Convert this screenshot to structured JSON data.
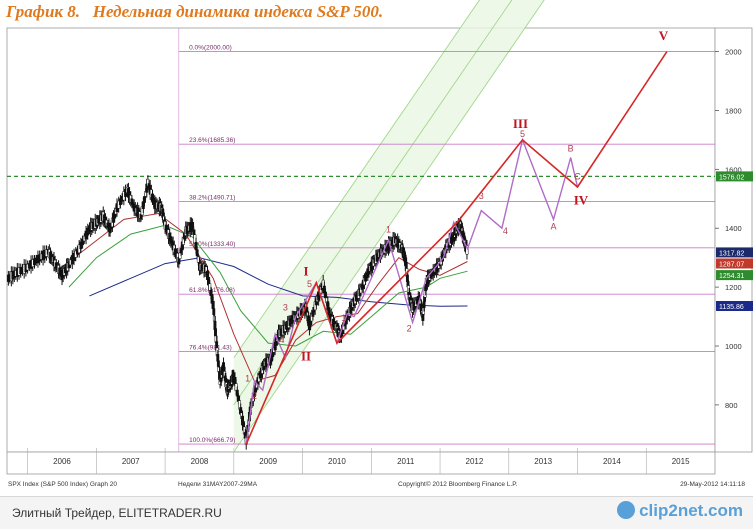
{
  "title": "График 8.   Недельная динамика индекса S&P 500.",
  "footer": {
    "caption": "Элитный Трейдер, ELITETRADER.RU",
    "logo": "clip2net.com"
  },
  "chart_data": {
    "type": "line",
    "ylim": [
      640,
      2080
    ],
    "y_ticks": [
      800,
      1000,
      1200,
      1400,
      1600,
      1800,
      2000
    ],
    "x_range": [
      2005.7,
      2016.0
    ],
    "x_ticks": [
      "2006",
      "2007",
      "2008",
      "2009",
      "2010",
      "2011",
      "2012",
      "2013",
      "2014",
      "2015"
    ],
    "grid": false,
    "bottom_text": {
      "left": "SPX Index (S&P 500 Index) Graph 20",
      "center_left": "Недели 31MAY2007-29MA",
      "center": "Copyright© 2012 Bloomberg Finance L.P.",
      "right": "29-May-2012 14:11:18"
    },
    "fib_levels": [
      {
        "label": "0.0%(2000.00)",
        "value": 2000.0
      },
      {
        "label": "23.6%(1685.36)",
        "value": 1685.36
      },
      {
        "label": "38.2%(1490.71)",
        "value": 1490.71
      },
      {
        "label": "50.0%(1333.40)",
        "value": 1333.4
      },
      {
        "label": "61.8%(1176.08)",
        "value": 1176.08
      },
      {
        "label": "76.4%(981.43)",
        "value": 981.43
      },
      {
        "label": "100.0%(666.79)",
        "value": 666.79
      }
    ],
    "last_values": [
      {
        "label": "1317.82",
        "value": 1317.82,
        "color": "#1a2a6a"
      },
      {
        "label": "1287.07",
        "value": 1287.07,
        "color": "#c0392b"
      },
      {
        "label": "1254.31",
        "value": 1254.31,
        "color": "#2e8b2e"
      },
      {
        "label": "1135.86",
        "value": 1135.86,
        "color": "#1a2a8a"
      }
    ],
    "dashed_level": {
      "label": "1576.02",
      "value": 1576.02
    },
    "price": [
      [
        2005.72,
        1230
      ],
      [
        2005.85,
        1250
      ],
      [
        2006.0,
        1268
      ],
      [
        2006.15,
        1295
      ],
      [
        2006.3,
        1320
      ],
      [
        2006.4,
        1280
      ],
      [
        2006.5,
        1240
      ],
      [
        2006.6,
        1275
      ],
      [
        2006.75,
        1330
      ],
      [
        2006.9,
        1400
      ],
      [
        2007.0,
        1418
      ],
      [
        2007.1,
        1440
      ],
      [
        2007.2,
        1395
      ],
      [
        2007.3,
        1470
      ],
      [
        2007.45,
        1530
      ],
      [
        2007.55,
        1470
      ],
      [
        2007.65,
        1440
      ],
      [
        2007.75,
        1555
      ],
      [
        2007.85,
        1480
      ],
      [
        2007.95,
        1470
      ],
      [
        2008.0,
        1410
      ],
      [
        2008.1,
        1350
      ],
      [
        2008.2,
        1290
      ],
      [
        2008.3,
        1390
      ],
      [
        2008.4,
        1410
      ],
      [
        2008.5,
        1270
      ],
      [
        2008.6,
        1260
      ],
      [
        2008.7,
        1140
      ],
      [
        2008.75,
        1000
      ],
      [
        2008.8,
        880
      ],
      [
        2008.85,
        930
      ],
      [
        2008.9,
        850
      ],
      [
        2008.95,
        870
      ],
      [
        2009.0,
        900
      ],
      [
        2009.1,
        780
      ],
      [
        2009.18,
        680
      ],
      [
        2009.25,
        800
      ],
      [
        2009.35,
        880
      ],
      [
        2009.45,
        940
      ],
      [
        2009.55,
        960
      ],
      [
        2009.65,
        1040
      ],
      [
        2009.75,
        1060
      ],
      [
        2009.85,
        1090
      ],
      [
        2009.95,
        1110
      ],
      [
        2010.05,
        1130
      ],
      [
        2010.1,
        1070
      ],
      [
        2010.2,
        1150
      ],
      [
        2010.3,
        1210
      ],
      [
        2010.4,
        1100
      ],
      [
        2010.5,
        1060
      ],
      [
        2010.55,
        1030
      ],
      [
        2010.65,
        1100
      ],
      [
        2010.75,
        1150
      ],
      [
        2010.85,
        1190
      ],
      [
        2010.95,
        1250
      ],
      [
        2011.05,
        1290
      ],
      [
        2011.15,
        1320
      ],
      [
        2011.25,
        1340
      ],
      [
        2011.35,
        1360
      ],
      [
        2011.45,
        1330
      ],
      [
        2011.5,
        1290
      ],
      [
        2011.55,
        1170
      ],
      [
        2011.6,
        1130
      ],
      [
        2011.7,
        1160
      ],
      [
        2011.75,
        1100
      ],
      [
        2011.8,
        1220
      ],
      [
        2011.9,
        1250
      ],
      [
        2012.0,
        1280
      ],
      [
        2012.1,
        1340
      ],
      [
        2012.2,
        1370
      ],
      [
        2012.25,
        1400
      ],
      [
        2012.3,
        1410
      ],
      [
        2012.35,
        1360
      ],
      [
        2012.4,
        1320
      ]
    ],
    "ma_red": [
      [
        2006.4,
        1250
      ],
      [
        2006.9,
        1340
      ],
      [
        2007.4,
        1430
      ],
      [
        2007.9,
        1450
      ],
      [
        2008.3,
        1380
      ],
      [
        2008.7,
        1230
      ],
      [
        2009.0,
        1040
      ],
      [
        2009.3,
        880
      ],
      [
        2009.6,
        900
      ],
      [
        2009.9,
        1020
      ],
      [
        2010.2,
        1080
      ],
      [
        2010.5,
        1100
      ],
      [
        2010.8,
        1110
      ],
      [
        2011.1,
        1210
      ],
      [
        2011.4,
        1300
      ],
      [
        2011.7,
        1260
      ],
      [
        2012.0,
        1240
      ],
      [
        2012.4,
        1287
      ]
    ],
    "ma_green": [
      [
        2006.6,
        1200
      ],
      [
        2007.0,
        1300
      ],
      [
        2007.5,
        1380
      ],
      [
        2008.0,
        1410
      ],
      [
        2008.4,
        1370
      ],
      [
        2008.8,
        1250
      ],
      [
        2009.1,
        1120
      ],
      [
        2009.5,
        1010
      ],
      [
        2009.9,
        1000
      ],
      [
        2010.3,
        1050
      ],
      [
        2010.7,
        1040
      ],
      [
        2011.0,
        1100
      ],
      [
        2011.4,
        1180
      ],
      [
        2011.8,
        1200
      ],
      [
        2012.0,
        1230
      ],
      [
        2012.4,
        1254
      ]
    ],
    "ma_blue": [
      [
        2006.9,
        1170
      ],
      [
        2007.5,
        1230
      ],
      [
        2008.0,
        1280
      ],
      [
        2008.5,
        1300
      ],
      [
        2009.0,
        1270
      ],
      [
        2009.5,
        1210
      ],
      [
        2010.0,
        1170
      ],
      [
        2010.5,
        1165
      ],
      [
        2011.0,
        1150
      ],
      [
        2011.5,
        1140
      ],
      [
        2012.0,
        1135
      ],
      [
        2012.4,
        1135.86
      ]
    ],
    "wave_main": [
      [
        2009.18,
        666
      ],
      [
        2010.2,
        1215
      ],
      [
        2010.5,
        1010
      ],
      [
        2012.25,
        1420
      ],
      [
        2013.2,
        1700
      ],
      [
        2014.0,
        1540
      ],
      [
        2015.3,
        2000
      ]
    ],
    "wave_sub": [
      [
        2009.18,
        666
      ],
      [
        2009.3,
        880
      ],
      [
        2009.42,
        850
      ],
      [
        2009.6,
        1040
      ],
      [
        2009.75,
        960
      ],
      [
        2009.9,
        1100
      ],
      [
        2010.2,
        1215
      ],
      [
        2010.5,
        1010
      ],
      [
        2010.65,
        1110
      ],
      [
        2010.75,
        1100
      ],
      [
        2011.25,
        1360
      ],
      [
        2011.6,
        1080
      ],
      [
        2011.8,
        1230
      ],
      [
        2012.05,
        1300
      ],
      [
        2012.2,
        1420
      ],
      [
        2012.4,
        1330
      ],
      [
        2012.6,
        1460
      ],
      [
        2012.9,
        1400
      ],
      [
        2013.2,
        1700
      ],
      [
        2013.65,
        1430
      ],
      [
        2013.9,
        1640
      ],
      [
        2014.0,
        1540
      ]
    ],
    "wave_labels": [
      {
        "text": "I",
        "x": 2010.05,
        "y": 1240,
        "color": "#c0141e",
        "big": true
      },
      {
        "text": "II",
        "x": 2010.05,
        "y": 950,
        "color": "#c0141e",
        "big": true
      },
      {
        "text": "III",
        "x": 2013.17,
        "y": 1740,
        "color": "#c0141e",
        "big": true
      },
      {
        "text": "IV",
        "x": 2014.05,
        "y": 1480,
        "color": "#c0141e",
        "big": true
      },
      {
        "text": "V",
        "x": 2015.25,
        "y": 2040,
        "color": "#c0141e",
        "big": true
      },
      {
        "text": "1",
        "x": 2009.2,
        "y": 880,
        "color": "#b04050",
        "big": false
      },
      {
        "text": "2",
        "x": 2009.3,
        "y": 820,
        "color": "#b04050",
        "big": false
      },
      {
        "text": "3",
        "x": 2009.75,
        "y": 1120,
        "color": "#b04050",
        "big": false
      },
      {
        "text": "4",
        "x": 2009.7,
        "y": 1010,
        "color": "#b04050",
        "big": false
      },
      {
        "text": "5",
        "x": 2010.1,
        "y": 1200,
        "color": "#b04050",
        "big": false
      },
      {
        "text": "1",
        "x": 2010.6,
        "y": 1085,
        "color": "#b04050",
        "big": false
      },
      {
        "text": "1",
        "x": 2011.25,
        "y": 1385,
        "color": "#b04050",
        "big": false
      },
      {
        "text": "2",
        "x": 2011.55,
        "y": 1050,
        "color": "#b04050",
        "big": false
      },
      {
        "text": "3",
        "x": 2012.6,
        "y": 1500,
        "color": "#b04050",
        "big": false
      },
      {
        "text": "4",
        "x": 2012.95,
        "y": 1380,
        "color": "#b04050",
        "big": false
      },
      {
        "text": "5",
        "x": 2013.2,
        "y": 1710,
        "color": "#b04050",
        "big": false
      },
      {
        "text": "A",
        "x": 2013.65,
        "y": 1395,
        "color": "#b04050",
        "big": false
      },
      {
        "text": "B",
        "x": 2013.9,
        "y": 1660,
        "color": "#b04050",
        "big": false
      },
      {
        "text": "C",
        "x": 2014.0,
        "y": 1565,
        "color": "#b04050",
        "big": false
      }
    ]
  }
}
